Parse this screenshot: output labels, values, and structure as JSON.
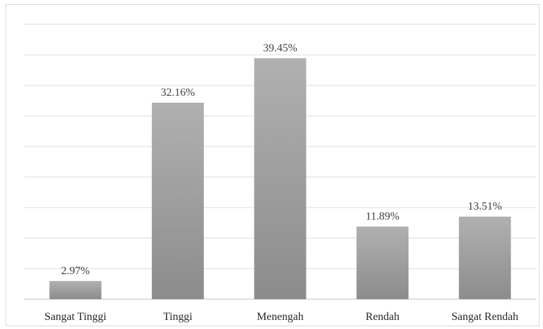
{
  "chart_data": {
    "type": "bar",
    "categories": [
      "Sangat Tinggi",
      "Tinggi",
      "Menengah",
      "Rendah",
      "Sangat Rendah"
    ],
    "values": [
      2.97,
      32.16,
      39.45,
      11.89,
      13.51
    ],
    "data_labels": [
      "2.97%",
      "32.16%",
      "39.45%",
      "11.89%",
      "13.51%"
    ],
    "ylim": [
      0,
      45
    ],
    "y_gridline_step": 5,
    "grid": true,
    "bar_color": "#a6a6a6",
    "title": "",
    "xlabel": "",
    "ylabel": ""
  }
}
